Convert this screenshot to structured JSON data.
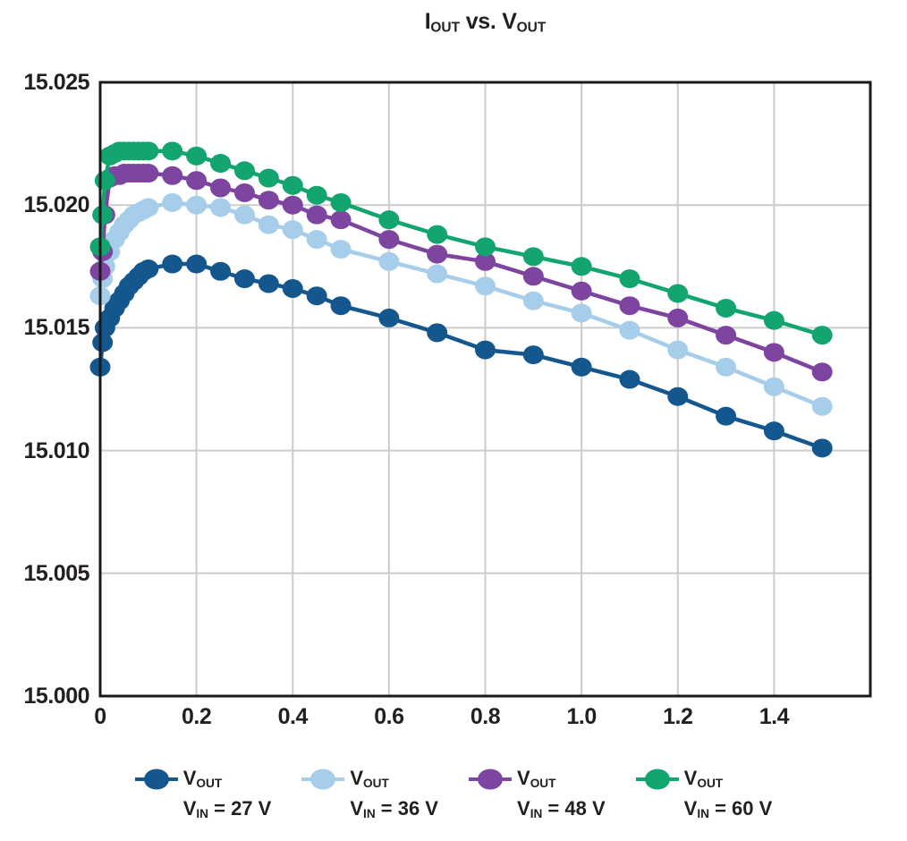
{
  "title": {
    "p1": "I",
    "s1": "OUT",
    "p2": " vs. V",
    "s2": "OUT"
  },
  "chart_data": {
    "type": "line",
    "title": "IOUT vs. VOUT",
    "xlabel": "",
    "ylabel": "",
    "xlim": [
      0,
      1.6
    ],
    "ylim": [
      15.0,
      15.025
    ],
    "grid": true,
    "legend_position": "bottom",
    "colors": {
      "grid": "#CCCCCC",
      "border": "#1A1A1A",
      "text": "#231F20"
    },
    "x_ticks": [
      0.2,
      0.4,
      0.6,
      0.8,
      1.0,
      1.2,
      1.4
    ],
    "x_tick_labels": [
      {
        "value": 0,
        "label": "0"
      },
      {
        "value": 0.2,
        "label": "0.2"
      },
      {
        "value": 0.4,
        "label": "0.4"
      },
      {
        "value": 0.6,
        "label": "0.6"
      },
      {
        "value": 0.8,
        "label": "0.8"
      },
      {
        "value": 1.0,
        "label": "1.0"
      },
      {
        "value": 1.2,
        "label": "1.2"
      },
      {
        "value": 1.4,
        "label": "1.4"
      }
    ],
    "y_gridlines": [
      15.005,
      15.01,
      15.015,
      15.02
    ],
    "y_tick_labels": [
      {
        "value": 15.0,
        "label": "15.000"
      },
      {
        "value": 15.005,
        "label": "15.005"
      },
      {
        "value": 15.01,
        "label": "15.010"
      },
      {
        "value": 15.015,
        "label": "15.015"
      },
      {
        "value": 15.02,
        "label": "15.020"
      },
      {
        "value": 15.025,
        "label": "15.025"
      }
    ],
    "x": [
      0,
      0.005,
      0.01,
      0.02,
      0.03,
      0.04,
      0.05,
      0.06,
      0.07,
      0.08,
      0.09,
      0.1,
      0.15,
      0.2,
      0.25,
      0.3,
      0.35,
      0.4,
      0.45,
      0.5,
      0.6,
      0.7,
      0.8,
      0.9,
      1.0,
      1.1,
      1.2,
      1.3,
      1.4,
      1.5
    ],
    "series": [
      {
        "id": "vin-27",
        "color": "#14578F",
        "legend": {
          "l1": "V",
          "l1_sub": "OUT",
          "l2": "V",
          "l2_sub": "IN",
          "l2_rest": " = 27 V"
        },
        "values": [
          15.0134,
          15.0144,
          15.015,
          15.0154,
          15.0158,
          15.0161,
          15.0164,
          15.0167,
          15.0169,
          15.0171,
          15.0173,
          15.0174,
          15.0176,
          15.0176,
          15.0173,
          15.017,
          15.0168,
          15.0166,
          15.0163,
          15.0159,
          15.0154,
          15.0148,
          15.0141,
          15.0139,
          15.0134,
          15.0129,
          15.0122,
          15.0114,
          15.0108,
          15.0101
        ]
      },
      {
        "id": "vin-36",
        "color": "#A6CEEA",
        "legend": {
          "l1": "V",
          "l1_sub": "OUT",
          "l2": "V",
          "l2_sub": "IN",
          "l2_rest": " = 36 V"
        },
        "values": [
          15.0163,
          15.017,
          15.0175,
          15.0181,
          15.0186,
          15.0189,
          15.0192,
          15.0194,
          15.0196,
          15.0197,
          15.0198,
          15.0199,
          15.0201,
          15.02,
          15.0199,
          15.0196,
          15.0192,
          15.019,
          15.0186,
          15.0182,
          15.0177,
          15.0172,
          15.0167,
          15.0161,
          15.0156,
          15.0149,
          15.0141,
          15.0134,
          15.0126,
          15.0118
        ]
      },
      {
        "id": "vin-48",
        "color": "#7D44A0",
        "legend": {
          "l1": "V",
          "l1_sub": "OUT",
          "l2": "V",
          "l2_sub": "IN",
          "l2_rest": " = 48 V"
        },
        "values": [
          15.0173,
          15.0181,
          15.0196,
          15.0211,
          15.0212,
          15.0212,
          15.0213,
          15.0213,
          15.0213,
          15.0213,
          15.0213,
          15.0213,
          15.0212,
          15.021,
          15.0207,
          15.0205,
          15.0202,
          15.02,
          15.0196,
          15.0194,
          15.0186,
          15.018,
          15.0177,
          15.0171,
          15.0165,
          15.0159,
          15.0154,
          15.0147,
          15.014,
          15.0132
        ]
      },
      {
        "id": "vin-60",
        "color": "#12A56F",
        "legend": {
          "l1": "V",
          "l1_sub": "OUT",
          "l2": "V",
          "l2_sub": "IN",
          "l2_rest": " = 60 V"
        },
        "values": [
          15.0183,
          15.0196,
          15.021,
          15.022,
          15.0221,
          15.0222,
          15.0222,
          15.0222,
          15.0222,
          15.0222,
          15.0222,
          15.0222,
          15.0222,
          15.022,
          15.0217,
          15.0214,
          15.0211,
          15.0208,
          15.0204,
          15.0201,
          15.0194,
          15.0188,
          15.0183,
          15.0179,
          15.0175,
          15.017,
          15.0164,
          15.0158,
          15.0153,
          15.0147
        ]
      }
    ]
  }
}
